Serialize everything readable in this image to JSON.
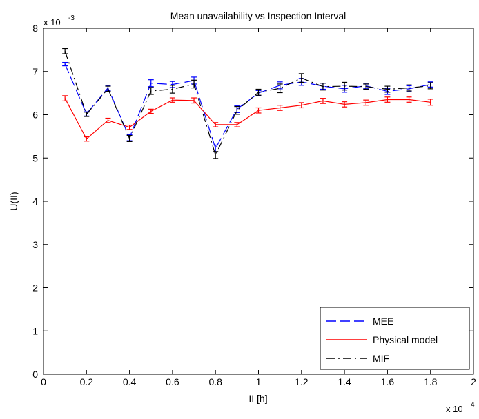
{
  "chart_data": {
    "type": "line",
    "title": "Mean unavailability vs Inspection Interval",
    "xlabel": "II [h]",
    "ylabel": "U(II)",
    "x_scale_label": {
      "base": "x 10",
      "exponent": "4"
    },
    "y_scale_label": {
      "base": "x 10",
      "exponent": "-3"
    },
    "xlim": [
      0,
      2
    ],
    "ylim": [
      0,
      8
    ],
    "x_ticks": [
      "0",
      "0.2",
      "0.4",
      "0.6",
      "0.8",
      "1",
      "1.2",
      "1.4",
      "1.6",
      "1.8",
      "2"
    ],
    "y_ticks": [
      "0",
      "1",
      "2",
      "3",
      "4",
      "5",
      "6",
      "7",
      "8"
    ],
    "x": [
      0.1,
      0.2,
      0.3,
      0.4,
      0.5,
      0.6,
      0.7,
      0.8,
      0.9,
      1.0,
      1.1,
      1.2,
      1.3,
      1.4,
      1.5,
      1.6,
      1.7,
      1.8
    ],
    "series": [
      {
        "name": "MEE",
        "color": "#0000ff",
        "dash": "dashed",
        "values": [
          7.17,
          6.02,
          6.62,
          5.47,
          6.73,
          6.7,
          6.79,
          5.22,
          6.13,
          6.5,
          6.68,
          6.76,
          6.66,
          6.6,
          6.67,
          6.54,
          6.6,
          6.7
        ],
        "errors": [
          0.04,
          0.05,
          0.06,
          0.07,
          0.08,
          0.07,
          0.08,
          0.08,
          0.08,
          0.06,
          0.08,
          0.08,
          0.07,
          0.08,
          0.06,
          0.07,
          0.07,
          0.06
        ]
      },
      {
        "name": "Physical model",
        "color": "#ff0000",
        "dash": "solid",
        "values": [
          6.38,
          5.44,
          5.87,
          5.71,
          6.08,
          6.34,
          6.33,
          5.77,
          5.77,
          6.1,
          6.16,
          6.22,
          6.32,
          6.24,
          6.28,
          6.35,
          6.35,
          6.29
        ],
        "errors": [
          0.06,
          0.05,
          0.05,
          0.05,
          0.05,
          0.05,
          0.06,
          0.05,
          0.05,
          0.06,
          0.06,
          0.06,
          0.06,
          0.06,
          0.06,
          0.06,
          0.06,
          0.07
        ]
      },
      {
        "name": "MIF",
        "color": "#000000",
        "dash": "dashdot",
        "values": [
          7.47,
          6.01,
          6.6,
          5.45,
          6.55,
          6.59,
          6.71,
          5.07,
          6.1,
          6.52,
          6.61,
          6.85,
          6.65,
          6.66,
          6.65,
          6.59,
          6.62,
          6.67
        ],
        "errors": [
          0.06,
          0.05,
          0.06,
          0.07,
          0.08,
          0.09,
          0.09,
          0.08,
          0.09,
          0.07,
          0.1,
          0.1,
          0.08,
          0.09,
          0.06,
          0.07,
          0.07,
          0.07
        ]
      }
    ],
    "legend_position": "bottom-right",
    "grid": false
  }
}
